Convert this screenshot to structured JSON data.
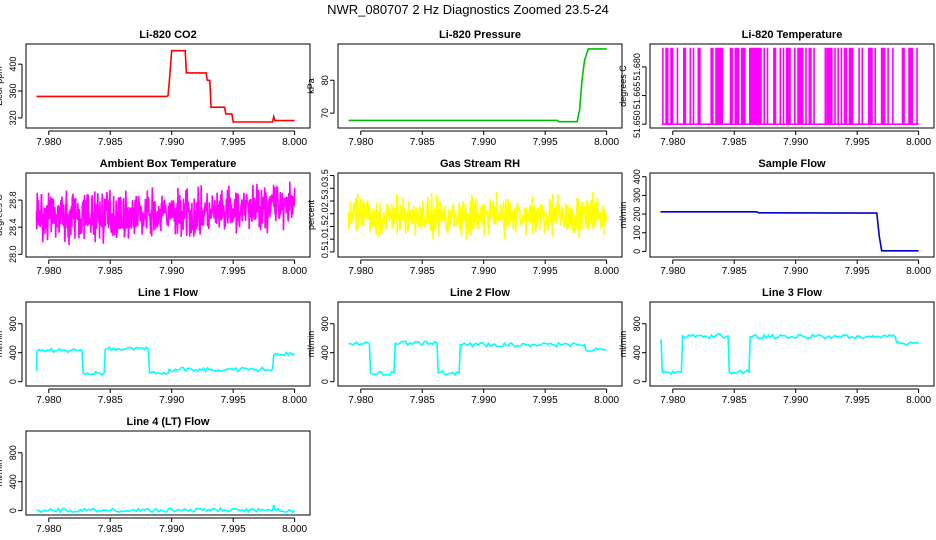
{
  "title": "NWR_080707  2 Hz Diagnostics Zoomed 23.5-24",
  "chart_data": [
    {
      "type": "line",
      "title": "Li-820 CO2",
      "ylabel": "Licor ppm",
      "color": "#ff0000",
      "xlim": [
        7.9788,
        8.0006
      ],
      "ylim": [
        305,
        430
      ],
      "xticks": [
        "7.980",
        "7.985",
        "7.990",
        "7.995",
        "8.000"
      ],
      "yticks": [
        "320",
        "360",
        "400"
      ],
      "x": [
        7.979,
        7.9896,
        7.9897,
        7.9898,
        7.99,
        7.9911,
        7.9912,
        7.9928,
        7.9929,
        7.9931,
        7.9932,
        7.9943,
        7.9944,
        7.9949,
        7.995,
        7.9982,
        7.9983,
        7.9984,
        8.0
      ],
      "y": [
        352,
        352,
        353,
        372,
        420,
        420,
        387,
        387,
        376,
        376,
        336,
        336,
        326,
        326,
        314,
        314,
        322,
        316,
        316
      ]
    },
    {
      "type": "line",
      "title": "Li-820 Pressure",
      "ylabel": "kPa",
      "color": "#00c000",
      "xlim": [
        7.9788,
        8.0006
      ],
      "ylim": [
        65.5,
        91
      ],
      "xticks": [
        "7.980",
        "7.985",
        "7.990",
        "7.995",
        "8.000"
      ],
      "yticks": [
        "70",
        "80"
      ],
      "x": [
        7.979,
        7.996,
        7.9961,
        7.9976,
        7.9978,
        7.998,
        7.9982,
        7.9985,
        8.0
      ],
      "y": [
        67.8,
        67.8,
        67.4,
        67.4,
        71,
        80,
        86,
        89.5,
        89.5
      ]
    },
    {
      "type": "line",
      "title": "Li-820 Temperature",
      "ylabel": "degrees C",
      "color": "#ff00ff",
      "xlim": [
        7.9788,
        8.0006
      ],
      "ylim": [
        51.648,
        51.692
      ],
      "xticks": [
        "7.980",
        "7.985",
        "7.990",
        "7.995",
        "8.000"
      ],
      "yticks": [
        "51.650",
        "51.665",
        "51.680"
      ],
      "baseline": 51.65,
      "peak": 51.69
    },
    {
      "type": "line",
      "title": "Ambient Box Temperature",
      "ylabel": "degrees C",
      "color": "#ff00ff",
      "xlim": [
        7.9788,
        8.0006
      ],
      "ylim": [
        27.96,
        29.2
      ],
      "xticks": [
        "7.980",
        "7.985",
        "7.990",
        "7.995",
        "8.000"
      ],
      "yticks": [
        "28.0",
        "28.4",
        "28.8"
      ],
      "level_x": [
        7.979,
        7.9945,
        7.9985,
        8.0
      ],
      "level_y": [
        28.55,
        28.6,
        28.75,
        28.8
      ],
      "spread": 0.2
    },
    {
      "type": "line",
      "title": "Gas Stream RH",
      "ylabel": "percent",
      "color": "#ffff00",
      "xlim": [
        7.9788,
        8.0006
      ],
      "ylim": [
        0.3,
        3.6
      ],
      "xticks": [
        "7.980",
        "7.985",
        "7.990",
        "7.995",
        "8.000"
      ],
      "yticks": [
        "0.5",
        "1.0",
        "1.5",
        "2.0",
        "2.5",
        "3.0",
        "3.5"
      ],
      "level_x": [
        7.979,
        8.0
      ],
      "level_y": [
        1.9,
        1.9
      ],
      "spread": 0.45
    },
    {
      "type": "line",
      "title": "Sample Flow",
      "ylabel": "ml/min",
      "color": "#0000cc",
      "xlim": [
        7.9788,
        8.0006
      ],
      "ylim": [
        -30,
        420
      ],
      "xticks": [
        "7.980",
        "7.985",
        "7.990",
        "7.995",
        "8.000"
      ],
      "yticks": [
        "0",
        "100",
        "200",
        "300",
        "400"
      ],
      "x": [
        7.979,
        7.9868,
        7.987,
        7.9966,
        7.9968,
        7.997,
        8.0
      ],
      "y": [
        212,
        212,
        207,
        205,
        80,
        3,
        3
      ]
    },
    {
      "type": "line",
      "title": "Line 1 Flow",
      "ylabel": "ml/min",
      "color": "#00ffff",
      "xlim": [
        7.9788,
        8.0006
      ],
      "ylim": [
        -60,
        1100
      ],
      "xticks": [
        "7.980",
        "7.985",
        "7.990",
        "7.995",
        "8.000"
      ],
      "yticks": [
        "0",
        "400",
        "800"
      ],
      "x": [
        7.979,
        7.97905,
        7.9827,
        7.9828,
        7.9845,
        7.9846,
        7.9881,
        7.9882,
        7.9897,
        7.9898,
        7.9982,
        7.9983,
        8.0
      ],
      "y": [
        150,
        430,
        430,
        120,
        120,
        450,
        450,
        120,
        120,
        170,
        170,
        370,
        390
      ]
    },
    {
      "type": "line",
      "title": "Line 2 Flow",
      "ylabel": "ml/min",
      "color": "#00ffff",
      "xlim": [
        7.9788,
        8.0006
      ],
      "ylim": [
        -60,
        1100
      ],
      "xticks": [
        "7.980",
        "7.985",
        "7.990",
        "7.995",
        "8.000"
      ],
      "yticks": [
        "0",
        "400",
        "800"
      ],
      "x": [
        7.979,
        7.9807,
        7.9808,
        7.9827,
        7.9828,
        7.9862,
        7.9863,
        7.988,
        7.9881,
        7.9982,
        7.9983,
        8.0
      ],
      "y": [
        520,
        520,
        120,
        120,
        530,
        530,
        120,
        120,
        510,
        510,
        440,
        440
      ]
    },
    {
      "type": "line",
      "title": "Line 3 Flow",
      "ylabel": "ml/min",
      "color": "#00ffff",
      "xlim": [
        7.9788,
        8.0006
      ],
      "ylim": [
        -60,
        1100
      ],
      "xticks": [
        "7.980",
        "7.985",
        "7.990",
        "7.995",
        "8.000"
      ],
      "yticks": [
        "0",
        "400",
        "800"
      ],
      "x": [
        7.979,
        7.97905,
        7.97915,
        7.9807,
        7.9808,
        7.9845,
        7.9846,
        7.9862,
        7.9863,
        7.9981,
        7.9982,
        8.0
      ],
      "y": [
        580,
        580,
        130,
        130,
        630,
        630,
        130,
        130,
        620,
        620,
        540,
        520
      ]
    },
    {
      "type": "line",
      "title": "Line 4 (LT) Flow",
      "ylabel": "ml/min",
      "color": "#00ffff",
      "xlim": [
        7.9788,
        8.0006
      ],
      "ylim": [
        -60,
        1100
      ],
      "xticks": [
        "7.980",
        "7.985",
        "7.990",
        "7.995",
        "8.000"
      ],
      "yticks": [
        "0",
        "400",
        "800"
      ],
      "x": [
        7.979,
        7.9982,
        7.9983,
        7.9984,
        7.9985,
        8.0
      ],
      "y": [
        5,
        5,
        80,
        10,
        5,
        5
      ]
    }
  ]
}
